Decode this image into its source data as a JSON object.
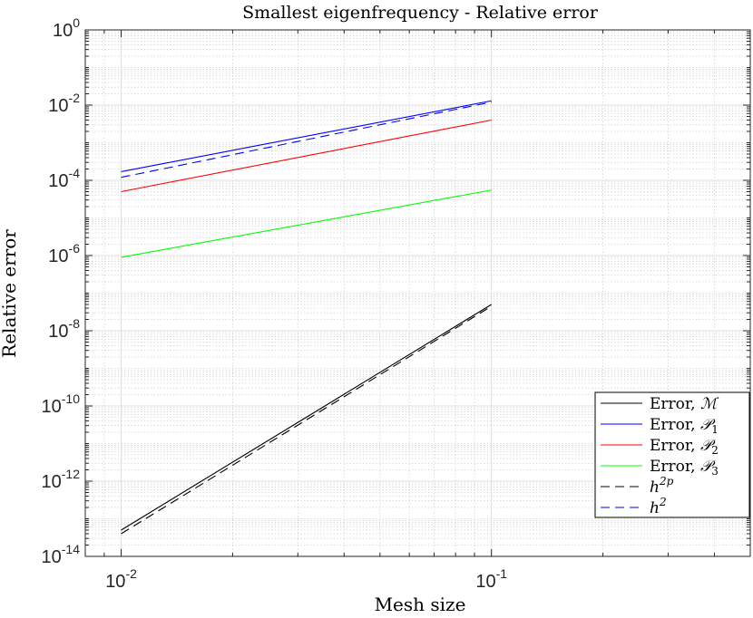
{
  "chart_data": {
    "type": "line",
    "scale": "loglog",
    "title": "Smallest eigenfrequency - Relative error",
    "xlabel": "Mesh size",
    "ylabel": "Relative error",
    "xlim": [
      0.008,
      0.5
    ],
    "ylim": [
      1e-14,
      1
    ],
    "grid": true,
    "minor_grid": true,
    "legend_position": "bottom-right",
    "x_ticks": [
      {
        "value": 0.01,
        "base": "10",
        "exp": "-2"
      },
      {
        "value": 0.1,
        "base": "10",
        "exp": "-1"
      }
    ],
    "y_ticks": [
      {
        "value": 1e-14,
        "base": "10",
        "exp": "-14"
      },
      {
        "value": 1e-12,
        "base": "10",
        "exp": "-12"
      },
      {
        "value": 1e-10,
        "base": "10",
        "exp": "-10"
      },
      {
        "value": 1e-08,
        "base": "10",
        "exp": "-8"
      },
      {
        "value": 1e-06,
        "base": "10",
        "exp": "-6"
      },
      {
        "value": 0.0001,
        "base": "10",
        "exp": "-4"
      },
      {
        "value": 0.01,
        "base": "10",
        "exp": "-2"
      },
      {
        "value": 1,
        "base": "10",
        "exp": "0"
      }
    ],
    "series": [
      {
        "name": "Error, M",
        "label_text": "Error, ",
        "label_math": "ℳ",
        "label_sub": "",
        "label_sup": "",
        "color": "#000000",
        "dash": "solid",
        "x": [
          0.01,
          0.1
        ],
        "y": [
          5e-14,
          5e-08
        ]
      },
      {
        "name": "Error, P1",
        "label_text": "Error, ",
        "label_math": "𝒫",
        "label_sub": "1",
        "label_sup": "",
        "color": "#0000ff",
        "dash": "solid",
        "x": [
          0.01,
          0.1
        ],
        "y": [
          0.00017,
          0.013
        ]
      },
      {
        "name": "Error, P2",
        "label_text": "Error, ",
        "label_math": "𝒫",
        "label_sub": "2",
        "label_sup": "",
        "color": "#ff0000",
        "dash": "solid",
        "x": [
          0.01,
          0.1
        ],
        "y": [
          5e-05,
          0.004
        ]
      },
      {
        "name": "Error, P3",
        "label_text": "Error, ",
        "label_math": "𝒫",
        "label_sub": "3",
        "label_sup": "",
        "color": "#00ff00",
        "dash": "solid",
        "x": [
          0.01,
          0.1
        ],
        "y": [
          9e-07,
          5.5e-05
        ]
      },
      {
        "name": "h^2p",
        "label_text": "",
        "label_math": "h",
        "label_sub": "",
        "label_sup": "2p",
        "color": "#000000",
        "dash": "dashed",
        "x": [
          0.01,
          0.1
        ],
        "y": [
          4e-14,
          4.5e-08
        ]
      },
      {
        "name": "h^2",
        "label_text": "",
        "label_math": "h",
        "label_sub": "",
        "label_sup": "2",
        "color": "#0000ff",
        "dash": "dashed",
        "x": [
          0.01,
          0.1
        ],
        "y": [
          0.00012,
          0.012
        ]
      }
    ]
  }
}
